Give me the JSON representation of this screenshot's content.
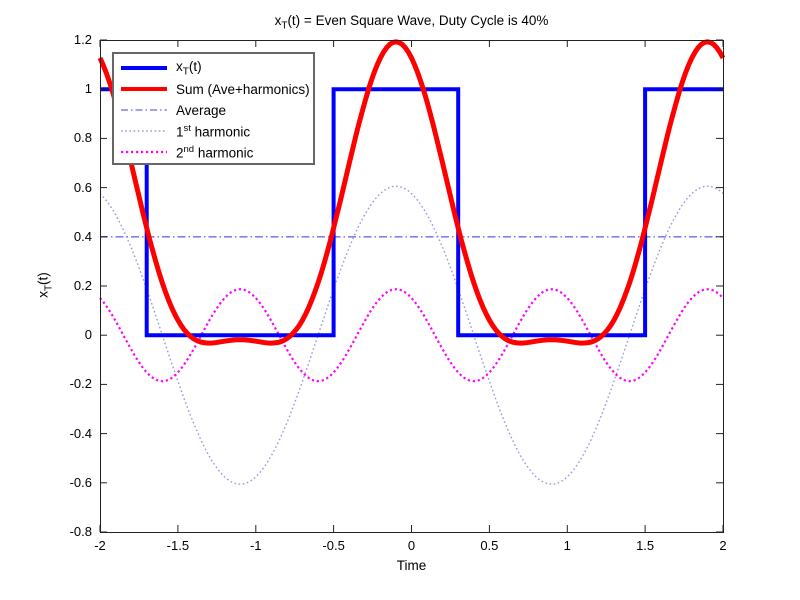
{
  "title": {
    "pre": "x",
    "sub": "T",
    "post": "(t) = Even Square Wave, Duty Cycle is 40%"
  },
  "axes": {
    "xlabel": "Time",
    "ylabel": {
      "pre": "x",
      "sub": "T",
      "post": "(t)"
    }
  },
  "legend": {
    "position": "upper-left",
    "items": [
      {
        "label": {
          "pre": "x",
          "sub": "T",
          "post": "(t)"
        },
        "color": "#0000ff",
        "width": 4,
        "dash": ""
      },
      {
        "label": {
          "pre": "Sum (Ave+harmonics)",
          "post": ""
        },
        "color": "#ff0000",
        "width": 4,
        "dash": ""
      },
      {
        "label": {
          "pre": "Average",
          "post": ""
        },
        "color": "#8080f2",
        "width": 1.6,
        "dash": "7 3 1.5 3"
      },
      {
        "label": {
          "pre": "1",
          "sup": "st",
          "post": " harmonic"
        },
        "color": "#9797e0",
        "width": 1.4,
        "dash": "1.6 2.6"
      },
      {
        "label": {
          "pre": "2",
          "sup": "nd",
          "post": " harmonic"
        },
        "color": "#ff00ff",
        "width": 2.2,
        "dash": "2.2 2.8"
      }
    ]
  },
  "chart_data": {
    "type": "line",
    "title": "x_T(t) = Even Square Wave, Duty Cycle is 40%",
    "xlabel": "Time",
    "ylabel": "x_T(t)",
    "xlim": [
      -2,
      2
    ],
    "ylim": [
      -0.8,
      1.2
    ],
    "grid": false,
    "xticks": {
      "values": [
        -2,
        -1.5,
        -1,
        -0.5,
        0,
        0.5,
        1,
        1.5,
        2
      ],
      "labels": [
        "-2",
        "-1.5",
        "-1",
        "-0.5",
        "0",
        "0.5",
        "1",
        "1.5",
        "2"
      ]
    },
    "yticks": {
      "values": [
        -0.8,
        -0.6,
        -0.4,
        -0.2,
        0,
        0.2,
        0.4,
        0.6,
        0.8,
        1,
        1.2
      ],
      "labels": [
        "-0.8",
        "-0.6",
        "-0.4",
        "-0.2",
        "0",
        "0.2",
        "0.4",
        "0.6",
        "0.8",
        "1",
        "1.2"
      ]
    },
    "square_wave": {
      "period": 2,
      "duty_cycle": 0.4,
      "high": 1,
      "low": 0,
      "high_intervals": [
        [
          -2,
          -1.7
        ],
        [
          -0.5,
          0.3
        ],
        [
          1.5,
          2
        ]
      ]
    },
    "average_value": 0.4,
    "harmonic_amplitudes": [
      0.6055,
      0.1871
    ],
    "sum_peak": {
      "t": -0.1,
      "value": 1.19
    },
    "series": [
      {
        "name": "xT(t)",
        "kind": "piecewise",
        "z": 4,
        "color": "#0000ff",
        "width": 4,
        "dash": "",
        "points": [
          [
            -2,
            1
          ],
          [
            -1.7,
            1
          ],
          [
            -1.7,
            0
          ],
          [
            -0.5,
            0
          ],
          [
            -0.5,
            1
          ],
          [
            0.3,
            1
          ],
          [
            0.3,
            0
          ],
          [
            1.5,
            0
          ],
          [
            1.5,
            1
          ],
          [
            2,
            1
          ]
        ]
      },
      {
        "name": "Sum (Ave+harmonics)",
        "kind": "fourier",
        "z": 5,
        "color": "#ff0000",
        "width": 5,
        "dash": "",
        "offset": 0.4,
        "t0": -0.1,
        "terms": [
          {
            "amplitude": 0.6055,
            "period": 2
          },
          {
            "amplitude": 0.1871,
            "period": 1
          }
        ]
      },
      {
        "name": "Average",
        "kind": "constant",
        "z": 1,
        "color": "#8080f2",
        "width": 1.6,
        "dash": "8 3 1.5 3",
        "value": 0.4
      },
      {
        "name": "1st harmonic",
        "kind": "harmonic",
        "z": 2,
        "color": "#9797e0",
        "width": 1.4,
        "dash": "1.6 2.6",
        "amplitude": 0.6055,
        "period": 2,
        "t0": -0.1
      },
      {
        "name": "2nd harmonic",
        "kind": "harmonic",
        "z": 3,
        "color": "#ff00ff",
        "width": 2.2,
        "dash": "2.2 2.8",
        "amplitude": 0.1871,
        "period": 1,
        "t0": -0.1
      }
    ]
  }
}
